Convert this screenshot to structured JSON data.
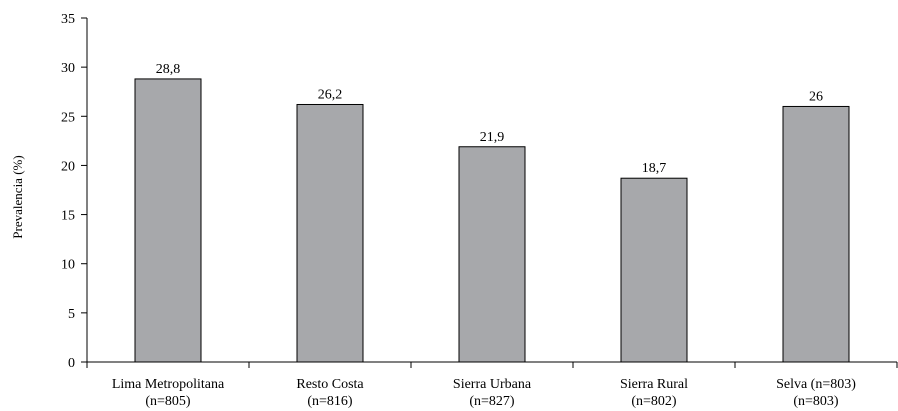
{
  "chart_data": {
    "type": "bar",
    "title": "",
    "ylabel": "Prevalencia (%)",
    "xlabel": "",
    "ylim": [
      0,
      35
    ],
    "yticks": [
      0,
      5,
      10,
      15,
      20,
      25,
      30,
      35
    ],
    "grid": false,
    "legend": "none",
    "bar_color": "#a7a8ab",
    "categories": [
      {
        "name": "Lima Metropolitana",
        "n": "(n=805)",
        "value": 28.8,
        "value_label": "28,8"
      },
      {
        "name": "Resto Costa",
        "n": "(n=816)",
        "value": 26.2,
        "value_label": "26,2"
      },
      {
        "name": "Sierra Urbana",
        "n": "(n=827)",
        "value": 21.9,
        "value_label": "21,9"
      },
      {
        "name": "Sierra Rural",
        "n": "(n=802)",
        "value": 18.7,
        "value_label": "18,7"
      },
      {
        "name": "Selva (n=803)",
        "n": "(n=803)",
        "value": 26,
        "value_label": "26"
      }
    ]
  }
}
